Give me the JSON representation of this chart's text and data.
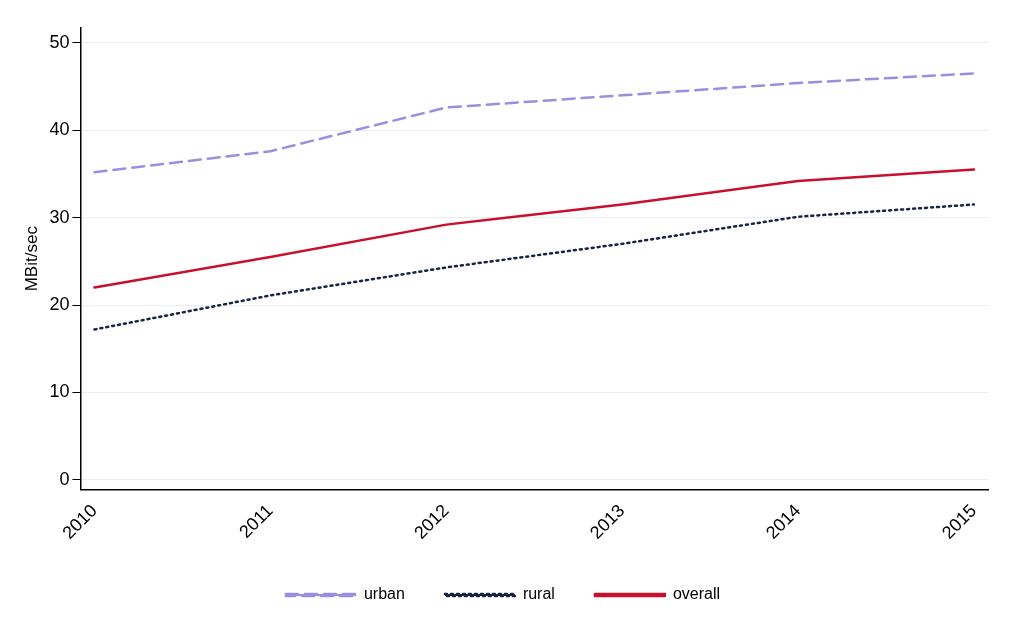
{
  "chart_data": {
    "type": "line",
    "ylabel": "MBit/sec",
    "x": [
      2010,
      2011,
      2012,
      2013,
      2014,
      2015
    ],
    "series": [
      {
        "name": "urban",
        "color": "#9a8fdc",
        "line_style": "dashed",
        "values": [
          35.2,
          37.6,
          42.6,
          44.0,
          45.4,
          46.5
        ]
      },
      {
        "name": "rural",
        "color": "#1a2344",
        "line_style": "dotted",
        "values": [
          17.2,
          21.1,
          24.3,
          27.0,
          30.1,
          31.5
        ]
      },
      {
        "name": "overall",
        "color": "#c8102e",
        "line_style": "solid",
        "values": [
          22.0,
          25.5,
          29.2,
          31.5,
          34.2,
          35.5
        ]
      }
    ],
    "xlim": [
      2009.92,
      2015.08
    ],
    "xticks": [
      2010,
      2011,
      2012,
      2013,
      2014,
      2015
    ],
    "ylim": [
      -1.1,
      51.7
    ],
    "yticks": [
      0,
      10,
      20,
      30,
      40,
      50
    ],
    "grid": "y",
    "legend": "bottom",
    "marker": "none"
  }
}
